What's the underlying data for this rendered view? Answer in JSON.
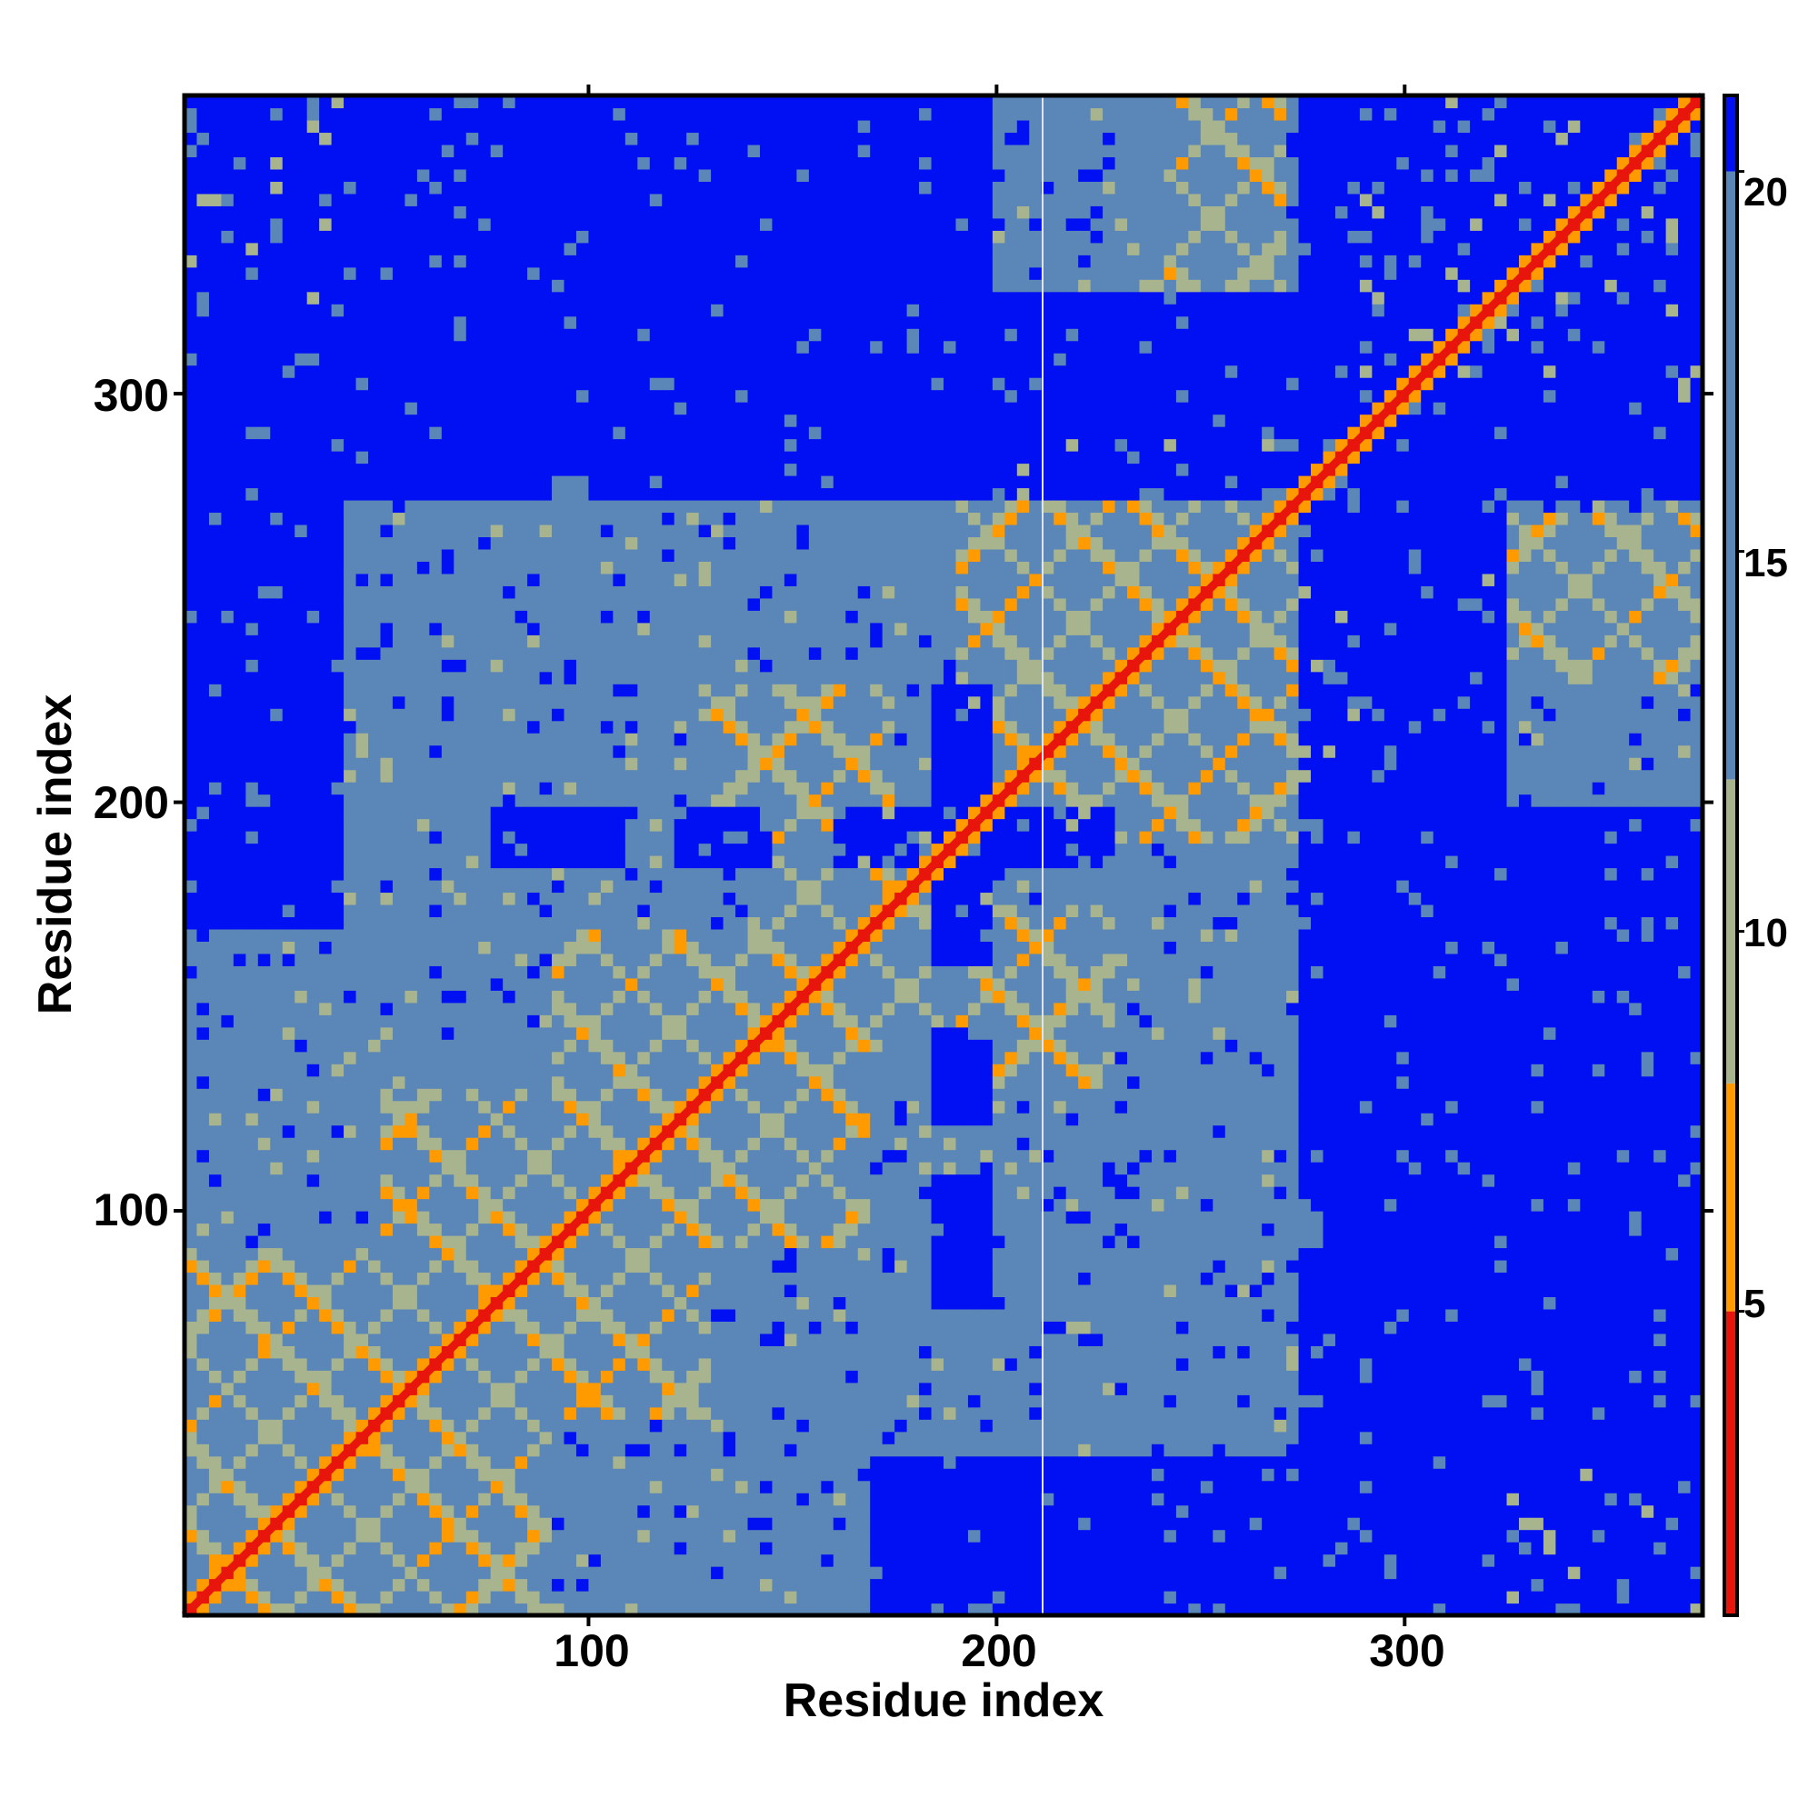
{
  "chart_data": {
    "type": "heatmap",
    "title": "",
    "xlabel": "Residue index",
    "ylabel": "Residue index",
    "xlim": [
      1,
      373
    ],
    "ylim": [
      1,
      373
    ],
    "x_ticks": [
      100,
      200,
      300
    ],
    "y_ticks": [
      100,
      200,
      300
    ],
    "x_tick_labels": [
      "100",
      "200",
      "300"
    ],
    "y_tick_labels": [
      "100",
      "200",
      "300"
    ],
    "colorbar": {
      "ticks": [
        5,
        10,
        15,
        20
      ],
      "tick_labels": [
        "5",
        "10",
        "15",
        "20"
      ],
      "range": [
        1,
        21
      ],
      "colors": [
        {
          "from": 1,
          "to": 5,
          "color": "#e8150c"
        },
        {
          "from": 5,
          "to": 8,
          "color": "#ff9a00"
        },
        {
          "from": 8,
          "to": 12,
          "color": "#a8b48e"
        },
        {
          "from": 12,
          "to": 20,
          "color": "#5b86b8"
        },
        {
          "from": 20,
          "to": 21,
          "color": "#0010f2"
        }
      ]
    },
    "diagonal": {
      "value": 0,
      "color": "#e8150c"
    },
    "grid": false,
    "colors": {
      "far": "#0010f2",
      "mid": "#5b86b8",
      "near": "#a8b48e",
      "close": "#ff9a00",
      "contact": "#e8150c"
    },
    "far_regions": [
      {
        "x": [
          1,
          90
        ],
        "y": [
          275,
          318
        ]
      },
      {
        "x": [
          100,
          373
        ],
        "y": [
          275,
          318
        ]
      },
      {
        "x": [
          1,
          373
        ],
        "y": [
          318,
          325
        ]
      },
      {
        "x": [
          280,
          373
        ],
        "y": [
          280,
          373
        ]
      },
      {
        "x": [
          280,
          373
        ],
        "y": [
          1,
          200
        ]
      },
      {
        "x": [
          170,
          280
        ],
        "y": [
          1,
          40
        ]
      },
      {
        "x": [
          160,
          230
        ],
        "y": [
          185,
          200
        ]
      },
      {
        "x": [
          75,
          110
        ],
        "y": [
          185,
          200
        ]
      },
      {
        "x": [
          120,
          145
        ],
        "y": [
          185,
          200
        ]
      }
    ],
    "contact_blocks": [
      {
        "x": [
          1,
          40
        ],
        "y": [
          320,
          373
        ]
      },
      {
        "x": [
          1,
          90
        ],
        "y": [
          1,
          90
        ]
      },
      {
        "x": [
          50,
          130
        ],
        "y": [
          50,
          130
        ]
      },
      {
        "x": [
          90,
          170
        ],
        "y": [
          90,
          170
        ]
      },
      {
        "x": [
          140,
          200
        ],
        "y": [
          140,
          200
        ]
      },
      {
        "x": [
          190,
          290
        ],
        "y": [
          190,
          290
        ]
      },
      {
        "x": [
          240,
          290
        ],
        "y": [
          240,
          290
        ]
      },
      {
        "x": [
          290,
          373
        ],
        "y": [
          290,
          373
        ]
      },
      {
        "x": [
          320,
          373
        ],
        "y": [
          1,
          40
        ]
      },
      {
        "x": [
          320,
          373
        ],
        "y": [
          230,
          270
        ]
      },
      {
        "x": [
          240,
          270
        ],
        "y": [
          320,
          373
        ]
      },
      {
        "x": [
          130,
          175
        ],
        "y": [
          190,
          230
        ]
      },
      {
        "x": [
          190,
          230
        ],
        "y": [
          130,
          175
        ]
      }
    ]
  }
}
